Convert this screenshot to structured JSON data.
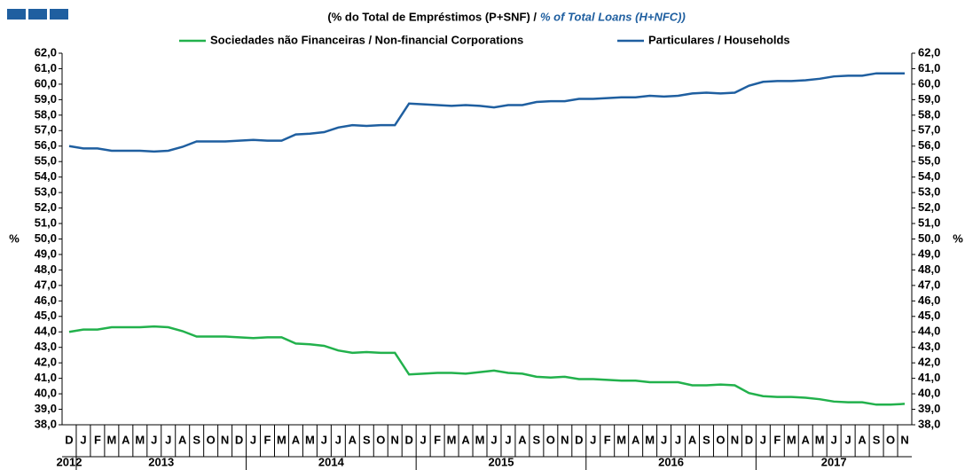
{
  "chart_data": {
    "type": "line",
    "title": "(% do Total de Empréstimos (P+SNF)  /",
    "subtitle": "% of Total Loans (H+NFC))",
    "ylabel": "%",
    "categories": [
      "D",
      "J",
      "F",
      "M",
      "A",
      "M",
      "J",
      "J",
      "A",
      "S",
      "O",
      "N",
      "D",
      "J",
      "F",
      "M",
      "A",
      "M",
      "J",
      "J",
      "A",
      "S",
      "O",
      "N",
      "D",
      "J",
      "F",
      "M",
      "A",
      "M",
      "J",
      "J",
      "A",
      "S",
      "O",
      "N",
      "D",
      "J",
      "F",
      "M",
      "A",
      "M",
      "J",
      "J",
      "A",
      "S",
      "O",
      "N",
      "D",
      "J",
      "F",
      "M",
      "A",
      "M",
      "J",
      "J",
      "A",
      "S",
      "O",
      "N"
    ],
    "years": [
      "2012",
      "2013",
      "2014",
      "2015",
      "2016",
      "2017"
    ],
    "series": [
      {
        "name": "Sociedades não Financeiras / Non-financial Corporations",
        "color": "#22b14c",
        "values": [
          44.0,
          44.15,
          44.15,
          44.3,
          44.3,
          44.3,
          44.35,
          44.3,
          44.05,
          43.7,
          43.7,
          43.7,
          43.65,
          43.6,
          43.65,
          43.65,
          43.25,
          43.2,
          43.1,
          42.8,
          42.65,
          42.7,
          42.65,
          42.65,
          41.25,
          41.3,
          41.35,
          41.35,
          41.3,
          41.4,
          41.5,
          41.35,
          41.3,
          41.1,
          41.05,
          41.1,
          40.95,
          40.95,
          40.9,
          40.85,
          40.85,
          40.75,
          40.75,
          40.75,
          40.55,
          40.55,
          40.6,
          40.55,
          40.05,
          39.85,
          39.8,
          39.8,
          39.75,
          39.65,
          39.5,
          39.45,
          39.45,
          39.3,
          39.3,
          39.35
        ]
      },
      {
        "name": "Particulares / Households",
        "color": "#1f5fa0",
        "values": [
          56.0,
          55.85,
          55.85,
          55.7,
          55.7,
          55.7,
          55.65,
          55.7,
          55.95,
          56.3,
          56.3,
          56.3,
          56.35,
          56.4,
          56.35,
          56.35,
          56.75,
          56.8,
          56.9,
          57.2,
          57.35,
          57.3,
          57.35,
          57.35,
          58.75,
          58.7,
          58.65,
          58.6,
          58.65,
          58.6,
          58.5,
          58.65,
          58.65,
          58.85,
          58.9,
          58.9,
          59.05,
          59.05,
          59.1,
          59.15,
          59.15,
          59.25,
          59.2,
          59.25,
          59.4,
          59.45,
          59.4,
          59.45,
          59.9,
          60.15,
          60.2,
          60.2,
          60.25,
          60.35,
          60.5,
          60.55,
          60.55,
          60.7,
          60.7,
          60.7
        ]
      }
    ],
    "ylim": [
      38,
      62
    ],
    "yticks": [
      {
        "value": 38,
        "label": "38,0"
      },
      {
        "value": 39,
        "label": "39,0"
      },
      {
        "value": 40,
        "label": "40,0"
      },
      {
        "value": 41,
        "label": "41,0"
      },
      {
        "value": 42,
        "label": "42,0"
      },
      {
        "value": 43,
        "label": "43,0"
      },
      {
        "value": 44,
        "label": "44,0"
      },
      {
        "value": 45,
        "label": "45,0"
      },
      {
        "value": 46,
        "label": "46,0"
      },
      {
        "value": 47,
        "label": "47,0"
      },
      {
        "value": 48,
        "label": "48,0"
      },
      {
        "value": 49,
        "label": "49,0"
      },
      {
        "value": 50,
        "label": "50,0"
      },
      {
        "value": 51,
        "label": "51,0"
      },
      {
        "value": 52,
        "label": "52,0"
      },
      {
        "value": 53,
        "label": "53,0"
      },
      {
        "value": 54,
        "label": "54,0"
      },
      {
        "value": 55,
        "label": "55,0"
      },
      {
        "value": 56,
        "label": "56,0"
      },
      {
        "value": 57,
        "label": "57,0"
      },
      {
        "value": 58,
        "label": "58,0"
      },
      {
        "value": 59,
        "label": "59,0"
      },
      {
        "value": 60,
        "label": "60,0"
      },
      {
        "value": 61,
        "label": "61,0"
      },
      {
        "value": 62,
        "label": "62,0"
      }
    ],
    "legend": "top"
  }
}
